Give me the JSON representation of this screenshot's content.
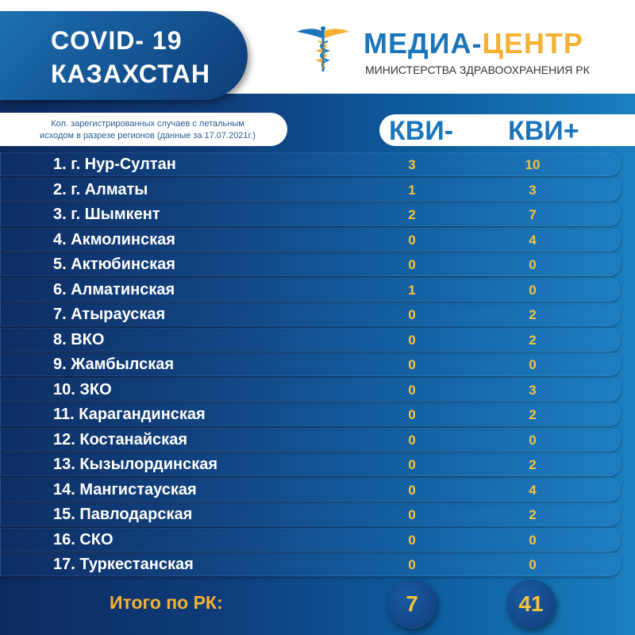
{
  "header": {
    "title_line1": "COVID- 19",
    "title_line2": "КАЗАХСТАН",
    "brand_part1": "МЕДИА-",
    "brand_part2": "ЦЕНТР",
    "brand_subtitle": "МИНИСТЕРСТВА ЗДРАВООХРАНЕНИЯ РК",
    "logo_icon": "caduceus-icon"
  },
  "caption": {
    "line1": "Кол. зарегистрированных случаев с летальным",
    "line2": "исходом в разрезе регионов  (данные за 17.07.2021г.)"
  },
  "columns": {
    "negative": "КВИ-",
    "positive": "КВИ+"
  },
  "rows": [
    {
      "name": "1. г. Нур-Султан",
      "neg": "3",
      "pos": "10"
    },
    {
      "name": "2. г. Алматы",
      "neg": "1",
      "pos": "3"
    },
    {
      "name": "3. г. Шымкент",
      "neg": "2",
      "pos": "7"
    },
    {
      "name": "4. Акмолинская",
      "neg": "0",
      "pos": "4"
    },
    {
      "name": "5. Актюбинская",
      "neg": "0",
      "pos": "0"
    },
    {
      "name": "6. Алматинская",
      "neg": "1",
      "pos": "0"
    },
    {
      "name": "7. Атырауская",
      "neg": "0",
      "pos": "2"
    },
    {
      "name": "8. ВКО",
      "neg": "0",
      "pos": "2"
    },
    {
      "name": "9. Жамбылская",
      "neg": "0",
      "pos": "0"
    },
    {
      "name": "10. ЗКО",
      "neg": "0",
      "pos": "3"
    },
    {
      "name": "11. Карагандинская",
      "neg": "0",
      "pos": "2"
    },
    {
      "name": "12. Костанайская",
      "neg": "0",
      "pos": "0"
    },
    {
      "name": "13. Кызылординская",
      "neg": "0",
      "pos": "2"
    },
    {
      "name": "14. Мангистауская",
      "neg": "0",
      "pos": "4"
    },
    {
      "name": "15. Павлодарская",
      "neg": "0",
      "pos": "2"
    },
    {
      "name": "16. СКО",
      "neg": "0",
      "pos": "0"
    },
    {
      "name": "17. Туркестанская",
      "neg": "0",
      "pos": "0"
    }
  ],
  "total": {
    "label": "Итого по РК:",
    "neg": "7",
    "pos": "41"
  },
  "colors": {
    "accent_yellow": "#f6b134",
    "brand_blue": "#1b75bb",
    "navy": "#0c2a5e"
  }
}
